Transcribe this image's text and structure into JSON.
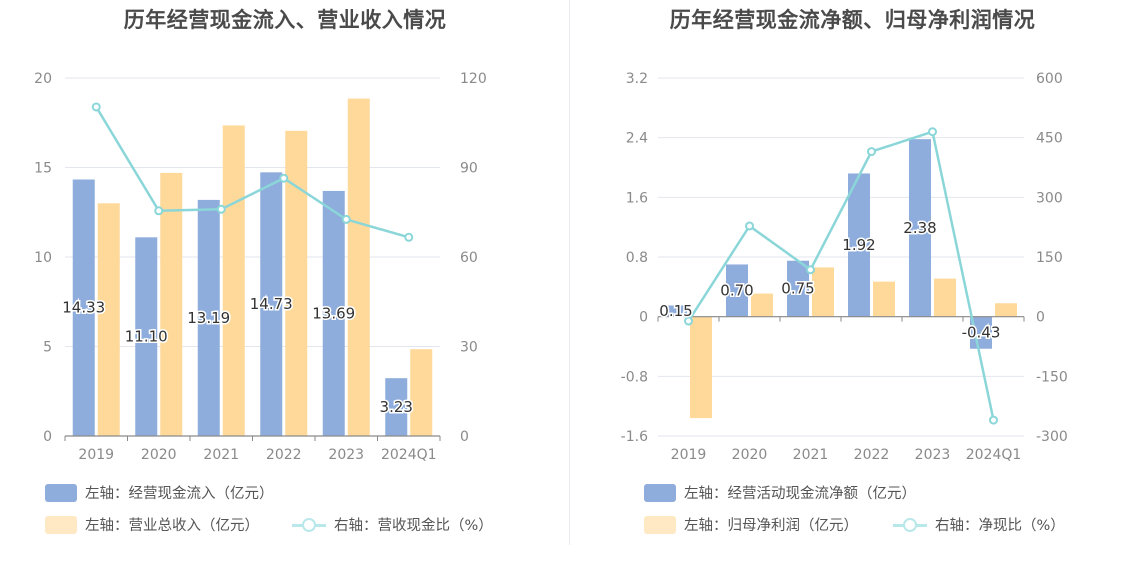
{
  "colors": {
    "bar_primary": "#8eaddc",
    "bar_secondary": "#ffd999",
    "line": "#8bd6d8",
    "legend_primary": "#8eaddc",
    "legend_secondary": "#ffe9c4",
    "legend_line": "#b9e8ea"
  },
  "chart_data": [
    {
      "type": "bar",
      "title": "历年经营现金流入、营业收入情况",
      "categories": [
        "2019",
        "2020",
        "2021",
        "2022",
        "2023",
        "2024Q1"
      ],
      "left_axis": {
        "ticks": [
          "0",
          "5",
          "10",
          "15",
          "20"
        ],
        "ylim": [
          0,
          20
        ]
      },
      "right_axis": {
        "ticks": [
          "0",
          "30",
          "60",
          "90",
          "120"
        ],
        "ylim": [
          0,
          120
        ]
      },
      "grid": true,
      "legend_position": "bottom-left",
      "series": [
        {
          "name": "左轴：经营现金流入（亿元）",
          "axis": "left",
          "kind": "bar",
          "values": [
            14.33,
            11.1,
            13.19,
            14.73,
            13.69,
            3.23
          ],
          "labels": [
            "14.33",
            "11.10",
            "13.19",
            "14.73",
            "13.69",
            "3.23"
          ]
        },
        {
          "name": "左轴：营业总收入（亿元）",
          "axis": "left",
          "kind": "bar",
          "values": [
            13.0,
            14.7,
            17.35,
            17.05,
            18.85,
            4.85
          ]
        },
        {
          "name": "右轴：营收现金比（%）",
          "axis": "right",
          "kind": "line",
          "values": [
            110.3,
            75.5,
            76.0,
            86.4,
            72.6,
            66.6
          ]
        }
      ]
    },
    {
      "type": "bar",
      "title": "历年经营现金流净额、归母净利润情况",
      "categories": [
        "2019",
        "2020",
        "2021",
        "2022",
        "2023",
        "2024Q1"
      ],
      "left_axis": {
        "ticks": [
          "-1.6",
          "-0.8",
          "0",
          "0.8",
          "1.6",
          "2.4",
          "3.2"
        ],
        "ylim": [
          -1.6,
          3.2
        ]
      },
      "right_axis": {
        "ticks": [
          "-300",
          "-150",
          "0",
          "150",
          "300",
          "450",
          "600"
        ],
        "ylim": [
          -300,
          600
        ]
      },
      "grid": true,
      "legend_position": "bottom-left",
      "series": [
        {
          "name": "左轴：经营活动现金流净额（亿元）",
          "axis": "left",
          "kind": "bar",
          "values": [
            0.15,
            0.7,
            0.75,
            1.92,
            2.38,
            -0.43
          ],
          "labels": [
            "0.15",
            "0.70",
            "0.75",
            "1.92",
            "2.38",
            "-0.43"
          ]
        },
        {
          "name": "左轴：归母净利润（亿元）",
          "axis": "left",
          "kind": "bar",
          "values": [
            -1.36,
            0.31,
            0.66,
            0.47,
            0.51,
            0.18
          ]
        },
        {
          "name": "右轴：净现比（%）",
          "axis": "right",
          "kind": "line",
          "values": [
            -11,
            228,
            118,
            415,
            465,
            -260
          ]
        }
      ]
    }
  ]
}
